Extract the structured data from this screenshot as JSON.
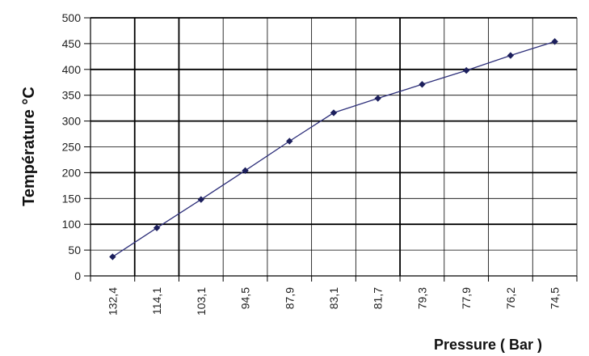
{
  "chart_data": {
    "type": "line",
    "title": "",
    "xlabel": "Pressure ( Bar )",
    "ylabel": "Température °C",
    "categories": [
      "132,4",
      "114,1",
      "103,1",
      "94,5",
      "87,9",
      "83,1",
      "81,7",
      "79,3",
      "77,9",
      "76,2",
      "74,5"
    ],
    "series": [
      {
        "name": "",
        "values": [
          37,
          93,
          148,
          204,
          261,
          316,
          344,
          371,
          398,
          427,
          454
        ]
      }
    ],
    "y_ticks": [
      "0",
      "50",
      "100",
      "150",
      "200",
      "250",
      "300",
      "350",
      "400",
      "450",
      "500"
    ],
    "ylim": [
      0,
      500
    ],
    "grid": true,
    "legend": "none",
    "colors": {
      "line": "#2d2f7a",
      "marker": "#1c1f5c",
      "grid": "#000000",
      "axis": "#000000"
    }
  }
}
